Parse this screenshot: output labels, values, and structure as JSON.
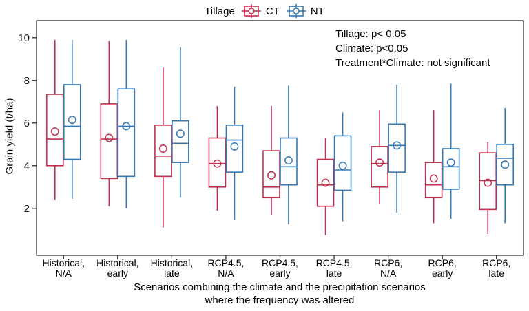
{
  "legend": {
    "title": "Tillage",
    "items": [
      {
        "label": "CT",
        "color": "#C32E4D"
      },
      {
        "label": "NT",
        "color": "#3478B6"
      }
    ]
  },
  "annotation": {
    "line1": "Tillage: p< 0.05",
    "line2": "Climate: p<0.05",
    "line3": "Treatment*Climate: not significant"
  },
  "colors": {
    "ct": "#C32E4D",
    "nt": "#3478B6",
    "axis": "#1a1a1a",
    "box_fill": "#ffffff"
  },
  "chart_data": {
    "type": "boxplot",
    "title": "",
    "ylabel": "Grain yield (t/ha)",
    "xlabel": "Scenarios combining the climate and the precipitation scenarios\nwhere the frequency was altered",
    "legend_position": "top",
    "grid": false,
    "yticks": [
      2,
      4,
      6,
      8,
      10
    ],
    "ylim": [
      -0.2,
      10.8
    ],
    "categories": [
      "Historical,\nN/A",
      "Historical,\nearly",
      "Historical,\nlate",
      "RCP4.5,\nN/A",
      "RCP4.5,\nearly",
      "RCP4.5,\nlate",
      "RCP6,\nN/A",
      "RCP6,\nearly",
      "RCP6,\nlate"
    ],
    "series": [
      {
        "name": "CT",
        "color": "#C32E4D",
        "boxes": [
          {
            "min": 2.4,
            "q1": 4.0,
            "median": 5.25,
            "q3": 7.35,
            "max": 9.9,
            "mean": 5.6
          },
          {
            "min": 2.1,
            "q1": 3.4,
            "median": 5.25,
            "q3": 6.9,
            "max": 9.85,
            "mean": 5.3
          },
          {
            "min": 1.1,
            "q1": 3.5,
            "median": 4.45,
            "q3": 5.9,
            "max": 8.6,
            "mean": 4.8
          },
          {
            "min": 1.9,
            "q1": 3.0,
            "median": 4.1,
            "q3": 5.3,
            "max": 6.8,
            "mean": 4.1
          },
          {
            "min": 1.7,
            "q1": 2.5,
            "median": 3.0,
            "q3": 4.7,
            "max": 6.8,
            "mean": 3.55
          },
          {
            "min": 0.75,
            "q1": 2.1,
            "median": 3.1,
            "q3": 4.3,
            "max": 5.3,
            "mean": 3.2
          },
          {
            "min": 2.2,
            "q1": 3.0,
            "median": 4.1,
            "q3": 4.9,
            "max": 6.6,
            "mean": 4.15
          },
          {
            "min": 1.3,
            "q1": 2.5,
            "median": 3.1,
            "q3": 4.15,
            "max": 6.6,
            "mean": 3.4
          },
          {
            "min": 0.8,
            "q1": 1.95,
            "median": 3.3,
            "q3": 4.6,
            "max": 5.1,
            "mean": 3.2
          }
        ]
      },
      {
        "name": "NT",
        "color": "#3478B6",
        "boxes": [
          {
            "min": 2.45,
            "q1": 4.3,
            "median": 5.85,
            "q3": 7.8,
            "max": 9.9,
            "mean": 6.15
          },
          {
            "min": 2.0,
            "q1": 3.5,
            "median": 5.85,
            "q3": 7.6,
            "max": 9.9,
            "mean": 5.85
          },
          {
            "min": 2.5,
            "q1": 4.15,
            "median": 5.05,
            "q3": 6.1,
            "max": 9.55,
            "mean": 5.5
          },
          {
            "min": 1.45,
            "q1": 3.7,
            "median": 5.2,
            "q3": 5.9,
            "max": 7.7,
            "mean": 4.9
          },
          {
            "min": 1.25,
            "q1": 3.1,
            "median": 3.95,
            "q3": 5.3,
            "max": 7.75,
            "mean": 4.25
          },
          {
            "min": 1.4,
            "q1": 2.85,
            "median": 3.8,
            "q3": 5.4,
            "max": 6.5,
            "mean": 4.0
          },
          {
            "min": 1.8,
            "q1": 3.7,
            "median": 4.95,
            "q3": 5.95,
            "max": 7.8,
            "mean": 4.95
          },
          {
            "min": 1.5,
            "q1": 2.9,
            "median": 3.95,
            "q3": 4.8,
            "max": 7.85,
            "mean": 4.15
          },
          {
            "min": 1.3,
            "q1": 3.1,
            "median": 4.35,
            "q3": 5.0,
            "max": 6.7,
            "mean": 4.05
          }
        ]
      }
    ]
  }
}
